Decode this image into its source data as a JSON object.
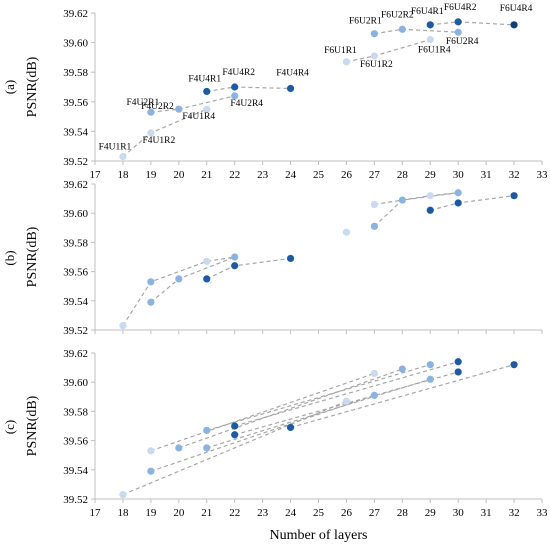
{
  "figure": {
    "xlabel": "Number of layers"
  },
  "colors": {
    "U1": "#c9d9ee",
    "U2": "#8cb3e0",
    "U4": "#1f5aa0",
    "U4_R4": "#0e3f7a",
    "dash": "#a6a6a6",
    "axis": "#bfbfbf"
  },
  "chart_data": [
    {
      "type": "scatter",
      "panel": "(a)",
      "ylabel": "PSNR(dB)",
      "xlim": [
        17,
        33
      ],
      "ylim": [
        39.52,
        39.62
      ],
      "xticks": [
        "17",
        "18",
        "19",
        "20",
        "21",
        "22",
        "23",
        "24",
        "25",
        "26",
        "27",
        "28",
        "29",
        "30",
        "31",
        "32",
        "33"
      ],
      "yticks": [
        "39.52",
        "39.54",
        "39.56",
        "39.58",
        "39.60",
        "39.62"
      ],
      "points": [
        {
          "label": "F4U1R1",
          "x": 18,
          "y": 39.523,
          "color": "U1"
        },
        {
          "label": "F4U1R2",
          "x": 19,
          "y": 39.539,
          "color": "U1"
        },
        {
          "label": "F4U1R4",
          "x": 21,
          "y": 39.555,
          "color": "U1"
        },
        {
          "label": "F4U2R1",
          "x": 19,
          "y": 39.553,
          "color": "U2"
        },
        {
          "label": "F4U2R2",
          "x": 20,
          "y": 39.555,
          "color": "U2"
        },
        {
          "label": "F4U2R4",
          "x": 22,
          "y": 39.564,
          "color": "U2"
        },
        {
          "label": "F4U4R1",
          "x": 21,
          "y": 39.567,
          "color": "U4"
        },
        {
          "label": "F4U4R2",
          "x": 22,
          "y": 39.57,
          "color": "U4"
        },
        {
          "label": "F4U4R4",
          "x": 24,
          "y": 39.569,
          "color": "U4"
        },
        {
          "label": "F6U1R1",
          "x": 26,
          "y": 39.587,
          "color": "U1"
        },
        {
          "label": "F6U1R2",
          "x": 27,
          "y": 39.591,
          "color": "U1"
        },
        {
          "label": "F6U1R4",
          "x": 29,
          "y": 39.602,
          "color": "U1"
        },
        {
          "label": "F6U2R1",
          "x": 27,
          "y": 39.606,
          "color": "U2"
        },
        {
          "label": "F6U2R2",
          "x": 28,
          "y": 39.609,
          "color": "U2"
        },
        {
          "label": "F6U2R4",
          "x": 30,
          "y": 39.607,
          "color": "U2"
        },
        {
          "label": "F6U4R1",
          "x": 29,
          "y": 39.612,
          "color": "U4"
        },
        {
          "label": "F6U4R2",
          "x": 30,
          "y": 39.614,
          "color": "U4"
        },
        {
          "label": "F6U4R4",
          "x": 32,
          "y": 39.612,
          "color": "U4_R4"
        }
      ],
      "lines": [
        [
          [
            18,
            39.523
          ],
          [
            19,
            39.539
          ],
          [
            21,
            39.555
          ]
        ],
        [
          [
            19,
            39.553
          ],
          [
            20,
            39.555
          ],
          [
            22,
            39.564
          ]
        ],
        [
          [
            21,
            39.567
          ],
          [
            22,
            39.57
          ],
          [
            24,
            39.569
          ]
        ],
        [
          [
            26,
            39.587
          ],
          [
            27,
            39.591
          ],
          [
            29,
            39.602
          ]
        ],
        [
          [
            27,
            39.606
          ],
          [
            28,
            39.609
          ],
          [
            30,
            39.607
          ]
        ],
        [
          [
            29,
            39.612
          ],
          [
            30,
            39.614
          ],
          [
            32,
            39.612
          ]
        ]
      ]
    },
    {
      "type": "scatter",
      "panel": "(b)",
      "ylabel": "PSNR(dB)",
      "xlim": [
        17,
        33
      ],
      "ylim": [
        39.52,
        39.62
      ],
      "xticks": [],
      "yticks": [
        "39.52",
        "39.54",
        "39.56",
        "39.58",
        "39.60",
        "39.62"
      ],
      "points": [
        {
          "x": 18,
          "y": 39.523,
          "color": "U1"
        },
        {
          "x": 19,
          "y": 39.553,
          "color": "U2"
        },
        {
          "x": 19,
          "y": 39.539,
          "color": "U2"
        },
        {
          "x": 20,
          "y": 39.555,
          "color": "U2"
        },
        {
          "x": 21,
          "y": 39.567,
          "color": "U1"
        },
        {
          "x": 21,
          "y": 39.555,
          "color": "U4"
        },
        {
          "x": 22,
          "y": 39.57,
          "color": "U2"
        },
        {
          "x": 22,
          "y": 39.564,
          "color": "U4"
        },
        {
          "x": 24,
          "y": 39.569,
          "color": "U4"
        },
        {
          "x": 26,
          "y": 39.587,
          "color": "U1"
        },
        {
          "x": 27,
          "y": 39.606,
          "color": "U1"
        },
        {
          "x": 27,
          "y": 39.591,
          "color": "U2"
        },
        {
          "x": 28,
          "y": 39.609,
          "color": "U2"
        },
        {
          "x": 29,
          "y": 39.612,
          "color": "U1"
        },
        {
          "x": 29,
          "y": 39.602,
          "color": "U4"
        },
        {
          "x": 30,
          "y": 39.614,
          "color": "U2"
        },
        {
          "x": 30,
          "y": 39.607,
          "color": "U4"
        },
        {
          "x": 32,
          "y": 39.612,
          "color": "U4"
        }
      ],
      "lines": [
        [
          [
            18,
            39.523
          ],
          [
            19,
            39.553
          ],
          [
            21,
            39.567
          ],
          [
            22,
            39.57
          ]
        ],
        [
          [
            19,
            39.539
          ],
          [
            20,
            39.555
          ],
          [
            22,
            39.57
          ]
        ],
        [
          [
            21,
            39.555
          ],
          [
            22,
            39.564
          ],
          [
            24,
            39.569
          ]
        ],
        [
          [
            26,
            39.587
          ]
        ],
        [
          [
            27,
            39.606
          ],
          [
            28,
            39.609
          ],
          [
            29,
            39.612
          ],
          [
            30,
            39.614
          ]
        ],
        [
          [
            27,
            39.591
          ],
          [
            28,
            39.609
          ],
          [
            30,
            39.614
          ]
        ],
        [
          [
            29,
            39.602
          ],
          [
            30,
            39.607
          ],
          [
            32,
            39.612
          ]
        ]
      ]
    },
    {
      "type": "scatter",
      "panel": "(c)",
      "ylabel": "PSNR(dB)",
      "xlim": [
        17,
        33
      ],
      "ylim": [
        39.52,
        39.62
      ],
      "xticks": [
        "17",
        "18",
        "19",
        "20",
        "21",
        "22",
        "23",
        "24",
        "25",
        "26",
        "27",
        "28",
        "29",
        "30",
        "31",
        "32",
        "33"
      ],
      "yticks": [
        "39.52",
        "39.54",
        "39.56",
        "39.58",
        "39.60",
        "39.62"
      ],
      "points": [
        {
          "x": 18,
          "y": 39.523,
          "color": "U1"
        },
        {
          "x": 19,
          "y": 39.553,
          "color": "U1"
        },
        {
          "x": 19,
          "y": 39.539,
          "color": "U2"
        },
        {
          "x": 20,
          "y": 39.555,
          "color": "U2"
        },
        {
          "x": 21,
          "y": 39.567,
          "color": "U2"
        },
        {
          "x": 21,
          "y": 39.555,
          "color": "U2"
        },
        {
          "x": 22,
          "y": 39.57,
          "color": "U4"
        },
        {
          "x": 22,
          "y": 39.564,
          "color": "U4"
        },
        {
          "x": 24,
          "y": 39.569,
          "color": "U4"
        },
        {
          "x": 26,
          "y": 39.587,
          "color": "U1"
        },
        {
          "x": 27,
          "y": 39.606,
          "color": "U1"
        },
        {
          "x": 27,
          "y": 39.591,
          "color": "U2"
        },
        {
          "x": 28,
          "y": 39.609,
          "color": "U2"
        },
        {
          "x": 29,
          "y": 39.612,
          "color": "U2"
        },
        {
          "x": 29,
          "y": 39.602,
          "color": "U2"
        },
        {
          "x": 30,
          "y": 39.614,
          "color": "U4"
        },
        {
          "x": 30,
          "y": 39.607,
          "color": "U4"
        },
        {
          "x": 32,
          "y": 39.612,
          "color": "U4"
        }
      ],
      "lines": [
        [
          [
            18,
            39.523
          ],
          [
            26,
            39.587
          ]
        ],
        [
          [
            19,
            39.553
          ],
          [
            27,
            39.606
          ]
        ],
        [
          [
            19,
            39.539
          ],
          [
            27,
            39.591
          ]
        ],
        [
          [
            20,
            39.555
          ],
          [
            28,
            39.609
          ]
        ],
        [
          [
            21,
            39.567
          ],
          [
            29,
            39.612
          ]
        ],
        [
          [
            21,
            39.555
          ],
          [
            29,
            39.602
          ]
        ],
        [
          [
            22,
            39.57
          ],
          [
            30,
            39.614
          ]
        ],
        [
          [
            22,
            39.564
          ],
          [
            30,
            39.607
          ]
        ],
        [
          [
            24,
            39.569
          ],
          [
            32,
            39.612
          ]
        ]
      ]
    }
  ]
}
